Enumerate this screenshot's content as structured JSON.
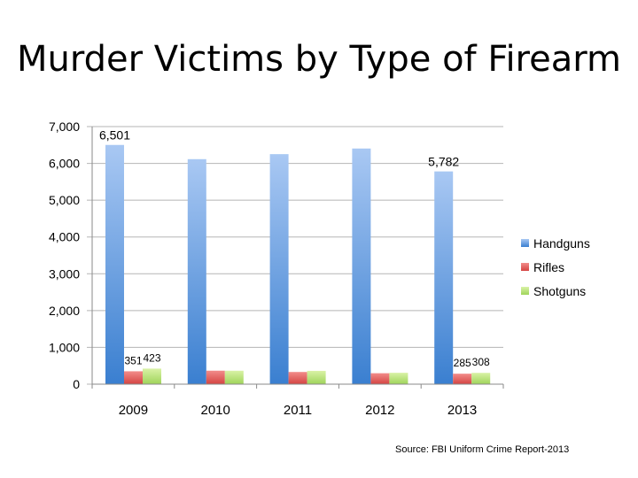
{
  "title": "Murder Victims by Type of Firearm",
  "source": "Source: FBI Uniform Crime Report-2013",
  "colors": {
    "handguns_top": "#a9c8f3",
    "handguns_bottom": "#3a7fd0",
    "rifles_top": "#f28c8a",
    "rifles_bottom": "#d44442",
    "shotguns_top": "#d9f2a6",
    "shotguns_bottom": "#9fd45a",
    "grid": "#b5b5b5"
  },
  "chart_data": {
    "type": "bar",
    "title": "Murder Victims by Type of Firearm",
    "xlabel": "",
    "ylabel": "",
    "ylim": [
      0,
      7000
    ],
    "yticks": [
      0,
      1000,
      2000,
      3000,
      4000,
      5000,
      6000,
      7000
    ],
    "ytick_labels": [
      "0",
      "1,000",
      "2,000",
      "3,000",
      "4,000",
      "5,000",
      "6,000",
      "7,000"
    ],
    "grid": true,
    "legend_position": "right",
    "categories": [
      "2009",
      "2010",
      "2011",
      "2012",
      "2013"
    ],
    "series": [
      {
        "name": "Handguns",
        "values": [
          6501,
          6115,
          6251,
          6404,
          5782
        ]
      },
      {
        "name": "Rifles",
        "values": [
          351,
          367,
          332,
          298,
          285
        ]
      },
      {
        "name": "Shotguns",
        "values": [
          423,
          366,
          362,
          310,
          308
        ]
      }
    ],
    "data_labels": [
      {
        "series": 0,
        "index": 0,
        "text": "6,501"
      },
      {
        "series": 0,
        "index": 4,
        "text": "5,782"
      },
      {
        "series": 1,
        "index": 0,
        "text": "351"
      },
      {
        "series": 2,
        "index": 0,
        "text": "423"
      },
      {
        "series": 1,
        "index": 4,
        "text": "285"
      },
      {
        "series": 2,
        "index": 4,
        "text": "308"
      }
    ]
  }
}
